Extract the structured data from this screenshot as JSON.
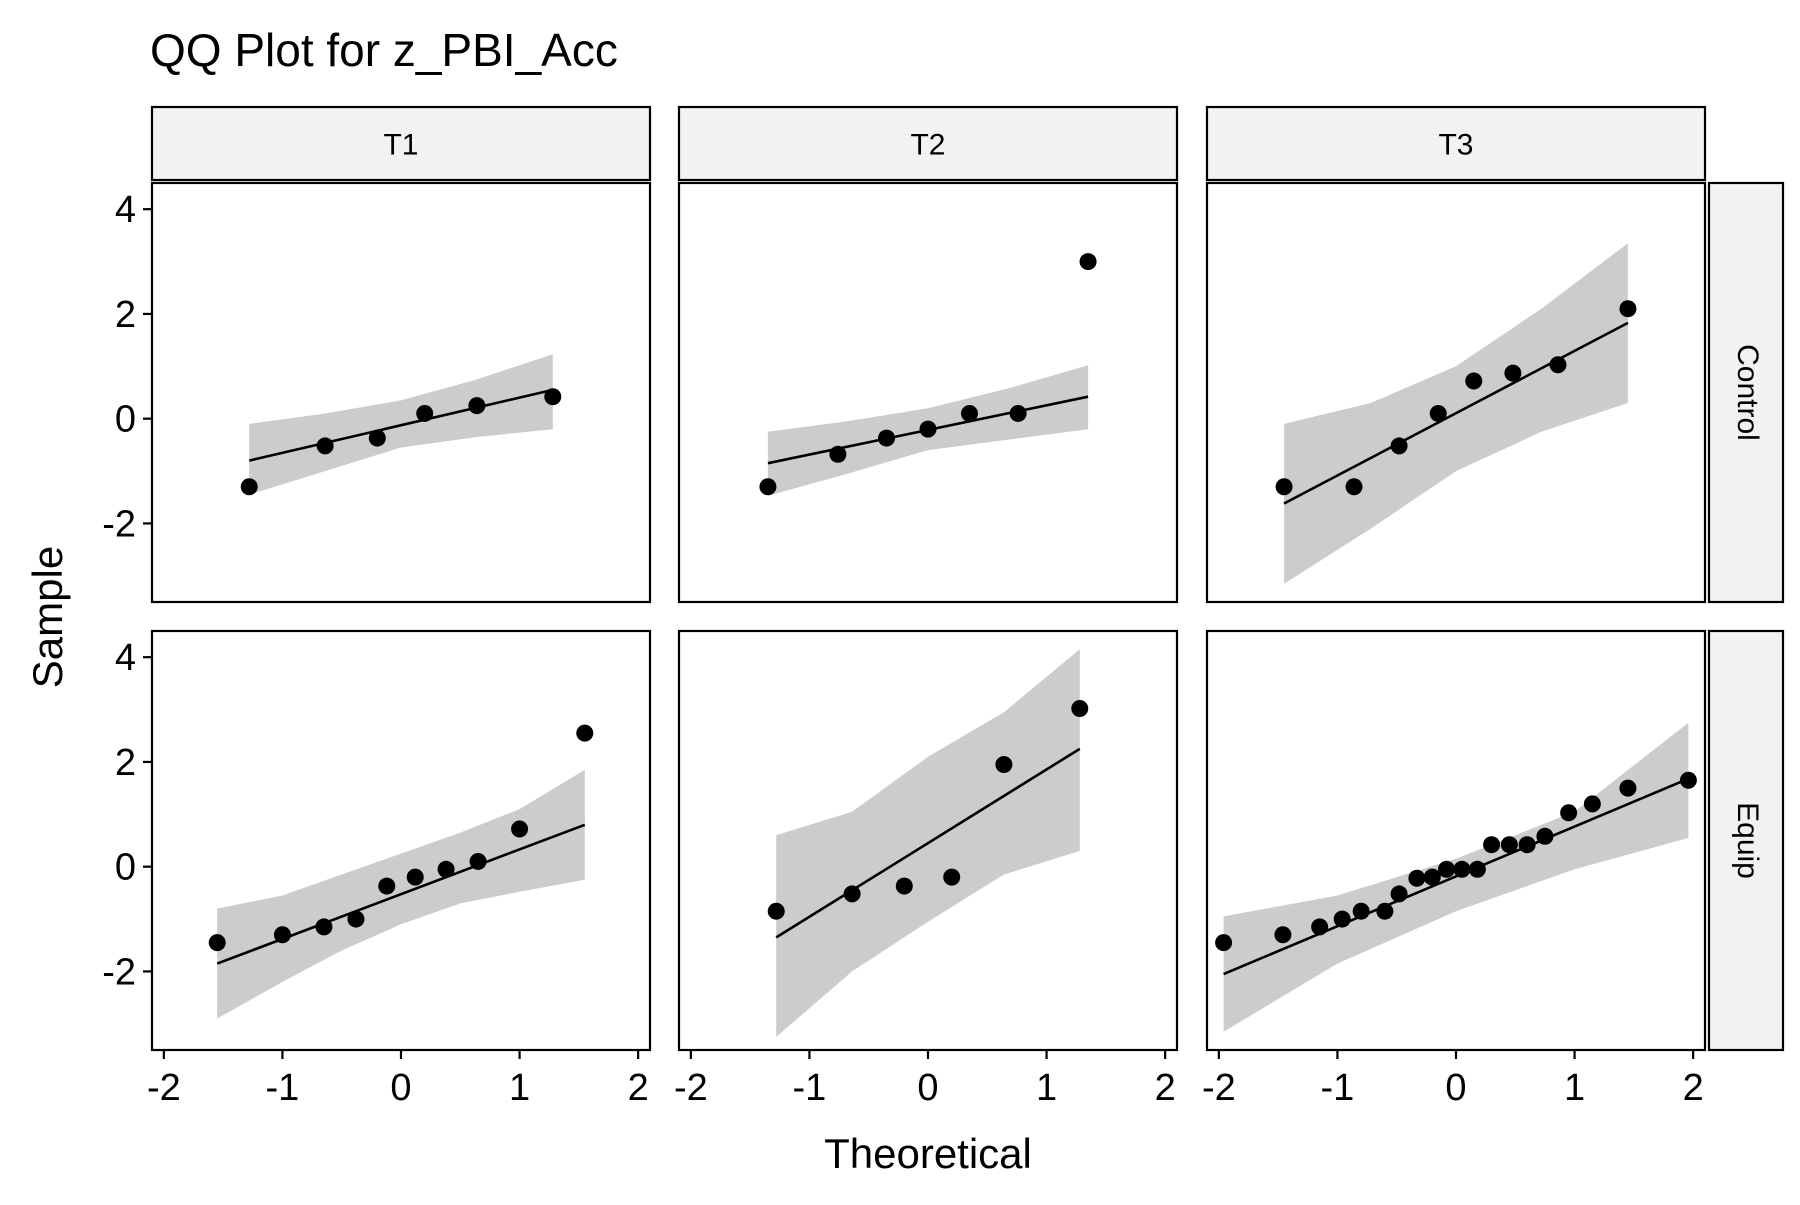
{
  "chart_data": {
    "type": "scatter",
    "title": "QQ Plot for z_PBI_Acc",
    "xlabel": "Theoretical",
    "ylabel": "Sample",
    "xlim": [
      -2.1,
      2.1
    ],
    "ylim": [
      -3.5,
      4.5
    ],
    "x_ticks": [
      -2,
      -1,
      0,
      1,
      2
    ],
    "y_ticks": [
      -2,
      0,
      2,
      4
    ],
    "x_tick_labels": [
      "-2",
      "-1",
      "0",
      "1",
      "2"
    ],
    "y_tick_labels": [
      "-2",
      "0",
      "2",
      "4"
    ],
    "columns": [
      "T1",
      "T2",
      "T3"
    ],
    "rows": [
      "Control",
      "Equip"
    ],
    "grid": false,
    "colors": {
      "points": "#000000",
      "line": "#000000",
      "band": "#cccccc",
      "strip_bg": "#f2f2f2",
      "border": "#000000"
    },
    "panels": [
      {
        "col": "T1",
        "row": "Control",
        "points": {
          "x": [
            -1.28,
            -0.64,
            -0.2,
            0.2,
            0.64,
            1.28
          ],
          "y": [
            -1.3,
            -0.52,
            -0.37,
            0.1,
            0.25,
            0.42
          ]
        },
        "line": {
          "x": [
            -1.28,
            1.28
          ],
          "y": [
            -0.8,
            0.55
          ]
        },
        "band": {
          "x": [
            -1.28,
            -0.64,
            0.0,
            0.64,
            1.28
          ],
          "upper": [
            -0.1,
            0.1,
            0.35,
            0.75,
            1.23
          ],
          "lower": [
            -1.45,
            -1.0,
            -0.55,
            -0.35,
            -0.2
          ]
        }
      },
      {
        "col": "T2",
        "row": "Control",
        "points": {
          "x": [
            -1.35,
            -0.76,
            -0.35,
            0.0,
            0.35,
            0.76,
            1.35
          ],
          "y": [
            -1.3,
            -0.68,
            -0.37,
            -0.2,
            0.1,
            0.1,
            3.0
          ]
        },
        "line": {
          "x": [
            -1.35,
            1.35
          ],
          "y": [
            -0.85,
            0.42
          ]
        },
        "band": {
          "x": [
            -1.35,
            -0.68,
            0.0,
            0.68,
            1.35
          ],
          "upper": [
            -0.25,
            -0.05,
            0.2,
            0.58,
            1.02
          ],
          "lower": [
            -1.47,
            -1.05,
            -0.6,
            -0.4,
            -0.2
          ]
        }
      },
      {
        "col": "T3",
        "row": "Control",
        "points": {
          "x": [
            -1.45,
            -0.86,
            -0.48,
            -0.15,
            0.15,
            0.48,
            0.86,
            1.45
          ],
          "y": [
            -1.3,
            -1.3,
            -0.52,
            0.1,
            0.72,
            0.87,
            1.03,
            2.1
          ]
        },
        "line": {
          "x": [
            -1.45,
            1.45
          ],
          "y": [
            -1.62,
            1.83
          ]
        },
        "band": {
          "x": [
            -1.45,
            -0.72,
            0.0,
            0.72,
            1.45
          ],
          "upper": [
            -0.1,
            0.3,
            1.0,
            2.1,
            3.35
          ],
          "lower": [
            -3.15,
            -2.1,
            -1.0,
            -0.25,
            0.3
          ]
        }
      },
      {
        "col": "T1",
        "row": "Equip",
        "points": {
          "x": [
            -1.55,
            -1.0,
            -0.65,
            -0.38,
            -0.12,
            0.12,
            0.38,
            0.65,
            1.0,
            1.55
          ],
          "y": [
            -1.45,
            -1.3,
            -1.15,
            -1.0,
            -0.37,
            -0.2,
            -0.05,
            0.1,
            0.72,
            2.55
          ]
        },
        "line": {
          "x": [
            -1.55,
            1.55
          ],
          "y": [
            -1.85,
            0.8
          ]
        },
        "band": {
          "x": [
            -1.55,
            -1.0,
            -0.5,
            0.0,
            0.5,
            1.0,
            1.55
          ],
          "upper": [
            -0.8,
            -0.55,
            -0.15,
            0.25,
            0.65,
            1.1,
            1.85
          ],
          "lower": [
            -2.9,
            -2.2,
            -1.6,
            -1.1,
            -0.7,
            -0.48,
            -0.25
          ]
        }
      },
      {
        "col": "T2",
        "row": "Equip",
        "points": {
          "x": [
            -1.28,
            -0.64,
            -0.2,
            0.2,
            0.64,
            1.28
          ],
          "y": [
            -0.85,
            -0.52,
            -0.37,
            -0.2,
            1.95,
            3.02
          ]
        },
        "line": {
          "x": [
            -1.28,
            1.28
          ],
          "y": [
            -1.35,
            2.25
          ]
        },
        "band": {
          "x": [
            -1.28,
            -0.64,
            0.0,
            0.64,
            1.28
          ],
          "upper": [
            0.6,
            1.05,
            2.1,
            2.95,
            4.15
          ],
          "lower": [
            -3.25,
            -2.0,
            -1.05,
            -0.15,
            0.3
          ]
        }
      },
      {
        "col": "T3",
        "row": "Equip",
        "points": {
          "x": [
            -1.96,
            -1.46,
            -1.15,
            -0.96,
            -0.8,
            -0.6,
            -0.48,
            -0.33,
            -0.2,
            -0.08,
            0.05,
            0.18,
            0.3,
            0.45,
            0.6,
            0.75,
            0.95,
            1.15,
            1.45,
            1.96
          ],
          "y": [
            -1.45,
            -1.3,
            -1.15,
            -1.0,
            -0.85,
            -0.85,
            -0.52,
            -0.22,
            -0.2,
            -0.05,
            -0.05,
            -0.05,
            0.42,
            0.42,
            0.42,
            0.58,
            1.03,
            1.2,
            1.5,
            1.65
          ]
        },
        "line": {
          "x": [
            -1.96,
            1.96
          ],
          "y": [
            -2.05,
            1.68
          ]
        },
        "band": {
          "x": [
            -1.96,
            -1.0,
            0.0,
            1.0,
            1.96
          ],
          "upper": [
            -0.95,
            -0.55,
            0.15,
            1.05,
            2.75
          ],
          "lower": [
            -3.15,
            -1.85,
            -0.85,
            -0.05,
            0.55
          ]
        }
      }
    ]
  }
}
